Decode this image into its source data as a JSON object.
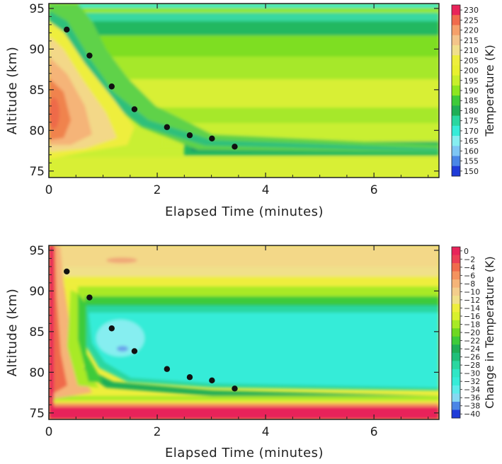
{
  "chart_data": [
    {
      "type": "heatmap",
      "xlabel": "Elapsed Time (minutes)",
      "ylabel": "Altitude (km)",
      "colorbar_label": "Temperature (K)",
      "xlim": [
        0,
        7.2
      ],
      "ylim": [
        74.2,
        95.6
      ],
      "x_ticks": [
        "0",
        "2",
        "4",
        "6"
      ],
      "y_ticks": [
        "75",
        "80",
        "85",
        "90",
        "95"
      ],
      "colorbar_ticks": [
        "230",
        "225",
        "220",
        "215",
        "210",
        "205",
        "200",
        "195",
        "190",
        "185",
        "180",
        "175",
        "170",
        "165",
        "160",
        "155",
        "150"
      ],
      "colorbar_colors": [
        "#e8245a",
        "#f06b4c",
        "#f5a06a",
        "#f3c48a",
        "#f0df8c",
        "#eeee3c",
        "#e8f030",
        "#c8ef2c",
        "#8ee620",
        "#3ecb3a",
        "#1fae56",
        "#2ad7a0",
        "#36ecd8",
        "#86eef0",
        "#7ec6f4",
        "#4a86e6",
        "#1f3bd8"
      ],
      "points": [
        {
          "x": 0.33,
          "y": 92.4
        },
        {
          "x": 0.75,
          "y": 89.2
        },
        {
          "x": 1.16,
          "y": 85.4
        },
        {
          "x": 1.58,
          "y": 82.6
        },
        {
          "x": 2.18,
          "y": 80.4
        },
        {
          "x": 2.6,
          "y": 79.4
        },
        {
          "x": 3.01,
          "y": 79.0
        },
        {
          "x": 3.43,
          "y": 78.0
        }
      ]
    },
    {
      "type": "heatmap",
      "xlabel": "Elapsed Time (minutes)",
      "ylabel": "Altitude (km)",
      "colorbar_label": "Change in Temperature (K)",
      "xlim": [
        0,
        7.2
      ],
      "ylim": [
        74.2,
        95.6
      ],
      "x_ticks": [
        "0",
        "2",
        "4",
        "6"
      ],
      "y_ticks": [
        "75",
        "80",
        "85",
        "90",
        "95"
      ],
      "colorbar_ticks": [
        "0",
        "−2",
        "−4",
        "−6",
        "−8",
        "−10",
        "−12",
        "−14",
        "−16",
        "−18",
        "−20",
        "−22",
        "−24",
        "−26",
        "−28",
        "−30",
        "−32",
        "−34",
        "−36",
        "−38",
        "−40"
      ],
      "colorbar_colors": [
        "#e8245a",
        "#ec3f56",
        "#f06b4c",
        "#f4935e",
        "#f5b478",
        "#f3cd8c",
        "#f0e08a",
        "#eeee3c",
        "#d8f02e",
        "#a8ea26",
        "#6ed822",
        "#3ecb3a",
        "#1fae56",
        "#1fbf7a",
        "#2ad7a0",
        "#30e6c6",
        "#36ecd8",
        "#5cecea",
        "#86d8f2",
        "#4a86e6",
        "#1f3bd8"
      ],
      "points": [
        {
          "x": 0.33,
          "y": 92.4
        },
        {
          "x": 0.75,
          "y": 89.2
        },
        {
          "x": 1.16,
          "y": 85.4
        },
        {
          "x": 1.58,
          "y": 82.6
        },
        {
          "x": 2.18,
          "y": 80.4
        },
        {
          "x": 2.6,
          "y": 79.4
        },
        {
          "x": 3.01,
          "y": 79.0
        },
        {
          "x": 3.43,
          "y": 78.0
        }
      ]
    }
  ]
}
